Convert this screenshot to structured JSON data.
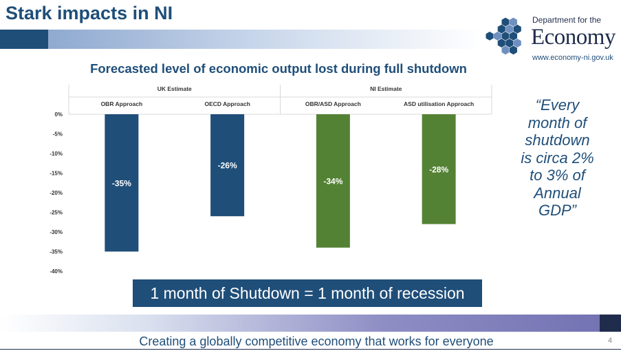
{
  "slide": {
    "title": "Stark impacts in NI",
    "page_number": "4"
  },
  "logo": {
    "dept_line": "Department for the",
    "name": "Economy",
    "url": "www.economy-ni.gov.uk"
  },
  "quote": {
    "lines": [
      "“Every",
      "month of",
      "shutdown",
      "is circa 2%",
      "to 3% of",
      "Annual",
      "GDP”"
    ]
  },
  "callout": {
    "text": "1 month of Shutdown = 1 month of recession"
  },
  "footer": {
    "text": "Creating a globally competitive economy that works for everyone"
  },
  "colors": {
    "uk": "#1F4E79",
    "ni": "#548235",
    "brand": "#1F4E79"
  },
  "chart_data": {
    "type": "bar",
    "title": "Forecasted level of economic output lost during full shutdown",
    "groups": [
      {
        "label": "UK Estimate",
        "categories": [
          "OBR Approach",
          "OECD Approach"
        ]
      },
      {
        "label": "NI Estimate",
        "categories": [
          "OBR/ASD Approach",
          "ASD utilisation Approach"
        ]
      }
    ],
    "categories": [
      "OBR Approach",
      "OECD Approach",
      "OBR/ASD Approach",
      "ASD utilisation Approach"
    ],
    "values": [
      -35,
      -26,
      -34,
      -28
    ],
    "value_labels": [
      "-35%",
      "-26%",
      "-34%",
      "-28%"
    ],
    "group_of_bar": [
      0,
      0,
      1,
      1
    ],
    "y_ticks": [
      0,
      -5,
      -10,
      -15,
      -20,
      -25,
      -30,
      -35,
      -40
    ],
    "y_tick_labels": [
      "0%",
      "-5%",
      "-10%",
      "-15%",
      "-20%",
      "-25%",
      "-30%",
      "-35%",
      "-40%"
    ],
    "ylim": [
      -40,
      0
    ],
    "grid": false,
    "xlabel": "",
    "ylabel": ""
  }
}
